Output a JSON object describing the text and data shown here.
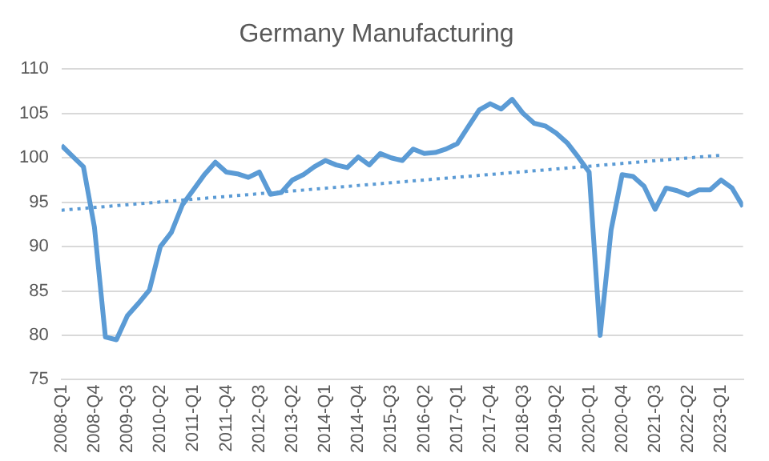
{
  "chart_data": {
    "type": "line",
    "title": "Germany Manufacturing",
    "categories": [
      "2008-Q1",
      null,
      null,
      "2008-Q4",
      null,
      null,
      "2009-Q3",
      null,
      null,
      "2010-Q2",
      null,
      null,
      "2011-Q1",
      null,
      null,
      "2011-Q4",
      null,
      null,
      "2012-Q3",
      null,
      null,
      "2013-Q2",
      null,
      null,
      "2014-Q1",
      null,
      null,
      "2014-Q4",
      null,
      null,
      "2015-Q3",
      null,
      null,
      "2016-Q2",
      null,
      null,
      "2017-Q1",
      null,
      null,
      "2017-Q4",
      null,
      null,
      "2018-Q3",
      null,
      null,
      "2019-Q2",
      null,
      null,
      "2020-Q1",
      null,
      null,
      "2020-Q4",
      null,
      null,
      "2021-Q3",
      null,
      null,
      "2022-Q2",
      null,
      null,
      "2023-Q1",
      null,
      null
    ],
    "series": [
      {
        "color": "#5b9bd5",
        "line_style": "solid",
        "values": [
          101.4,
          100.2,
          99.0,
          92.2,
          79.8,
          79.5,
          82.2,
          83.6,
          85.1,
          90.0,
          91.6,
          94.7,
          96.4,
          98.1,
          99.5,
          98.4,
          98.2,
          97.8,
          98.4,
          95.9,
          96.1,
          97.5,
          98.1,
          99.0,
          99.7,
          99.2,
          98.9,
          100.1,
          99.2,
          100.5,
          100.0,
          99.7,
          101.0,
          100.5,
          100.6,
          101.0,
          101.6,
          103.5,
          105.4,
          106.1,
          105.5,
          106.6,
          105.0,
          103.9,
          103.6,
          102.8,
          101.7,
          100.1,
          98.4,
          80.0,
          91.9,
          98.1,
          97.9,
          96.8,
          94.2,
          96.6,
          96.3,
          95.8,
          96.4,
          96.4,
          97.5,
          96.6,
          94.5
        ]
      },
      {
        "type": "line",
        "color": "#5b9bd5",
        "line_style": "dotted",
        "x": [
          "2008-Q1",
          "2023-Q1"
        ],
        "values": [
          94.1,
          100.3
        ]
      }
    ],
    "ylim": [
      75,
      110
    ],
    "yticks": [
      75,
      80,
      85,
      90,
      95,
      100,
      105,
      110
    ],
    "grid": "y",
    "legend": false,
    "marker": "none"
  }
}
